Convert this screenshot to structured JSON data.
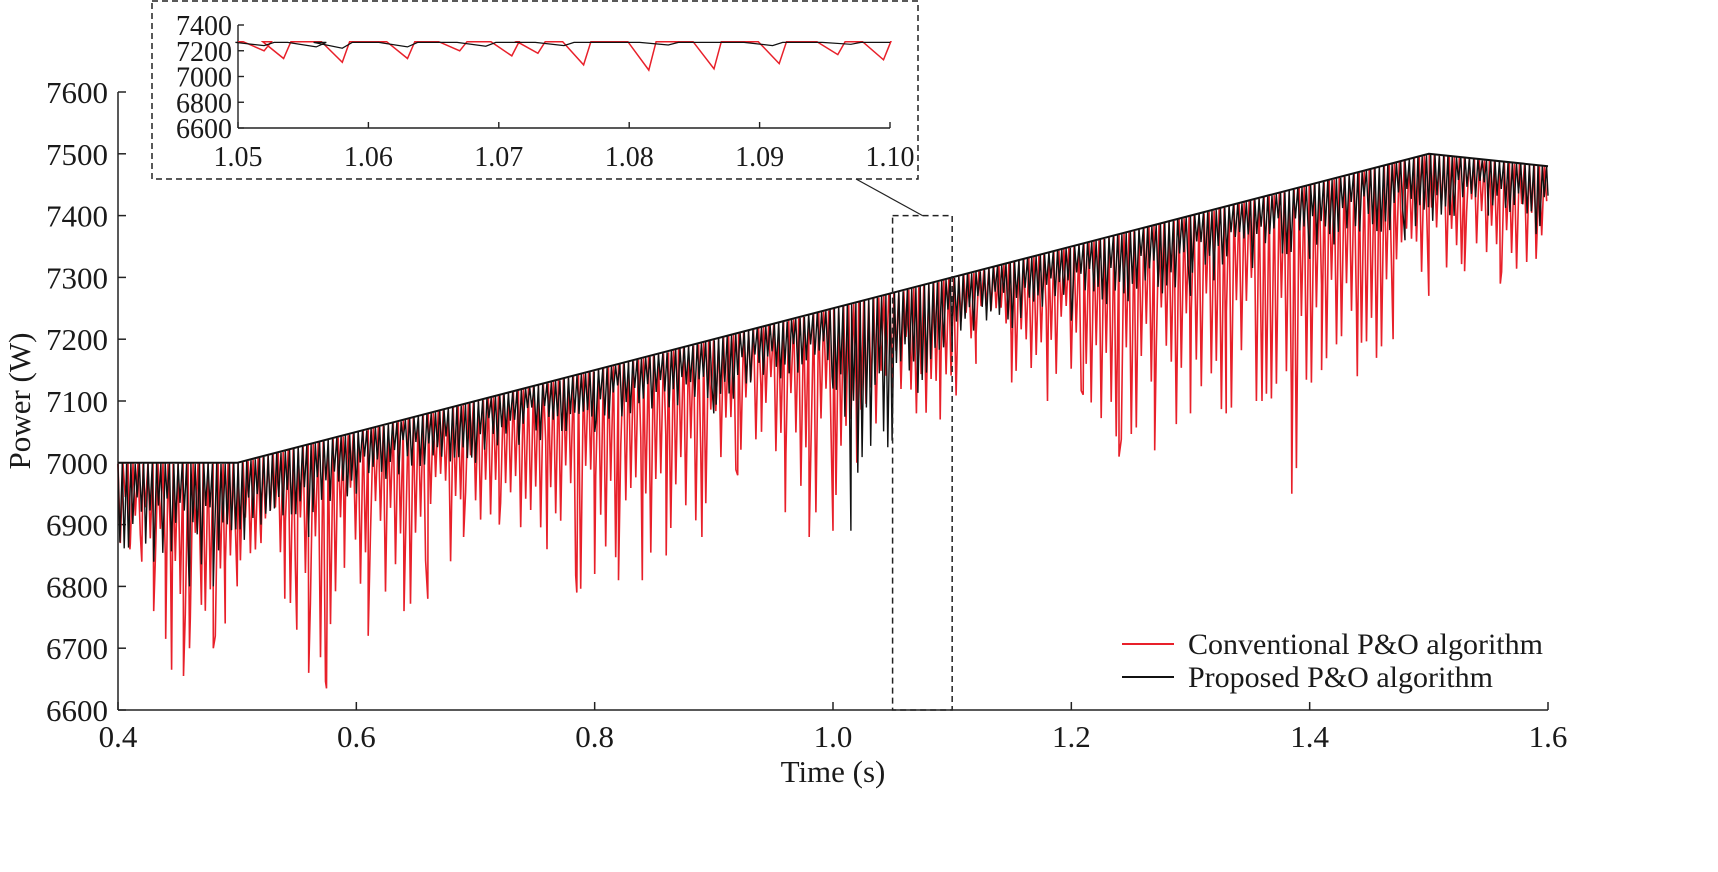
{
  "chart_data": {
    "type": "line",
    "title": "",
    "xlabel": "Time (s)",
    "ylabel": "Power (W)",
    "xlim": [
      0.4,
      1.6
    ],
    "ylim": [
      6600,
      7600
    ],
    "xticks": [
      "0.4",
      "0.6",
      "0.8",
      "1.0",
      "1.2",
      "1.4",
      "1.6"
    ],
    "yticks": [
      "6600",
      "6700",
      "6800",
      "6900",
      "7000",
      "7100",
      "7200",
      "7300",
      "7400",
      "7500",
      "7600"
    ],
    "grid": false,
    "legend_position": "bottom-right",
    "series": [
      {
        "name": "Conventional P&O algorithm",
        "color": "#e8202a",
        "envelope_top": [
          [
            0.4,
            7000
          ],
          [
            0.5,
            7000
          ],
          [
            1.5,
            7500
          ],
          [
            1.6,
            7480
          ]
        ],
        "dips": [
          [
            0.41,
            6860
          ],
          [
            0.42,
            6840
          ],
          [
            0.43,
            6760
          ],
          [
            0.44,
            6715
          ],
          [
            0.445,
            6665
          ],
          [
            0.455,
            6655
          ],
          [
            0.46,
            6700
          ],
          [
            0.47,
            6770
          ],
          [
            0.48,
            6700
          ],
          [
            0.49,
            6740
          ],
          [
            0.5,
            6800
          ],
          [
            0.52,
            6870
          ],
          [
            0.54,
            6780
          ],
          [
            0.55,
            6730
          ],
          [
            0.56,
            6660
          ],
          [
            0.575,
            6635
          ],
          [
            0.59,
            6830
          ],
          [
            0.61,
            6720
          ],
          [
            0.64,
            6760
          ],
          [
            0.66,
            6780
          ],
          [
            0.69,
            6880
          ],
          [
            0.72,
            6900
          ],
          [
            0.76,
            6860
          ],
          [
            0.785,
            6790
          ],
          [
            0.8,
            6820
          ],
          [
            0.82,
            6810
          ],
          [
            0.84,
            6810
          ],
          [
            0.86,
            6850
          ],
          [
            0.89,
            6880
          ],
          [
            0.92,
            6980
          ],
          [
            0.94,
            7050
          ],
          [
            0.96,
            6920
          ],
          [
            0.98,
            6880
          ],
          [
            1.0,
            6890
          ],
          [
            1.02,
            7000
          ],
          [
            1.05,
            7120
          ],
          [
            1.07,
            7080
          ],
          [
            1.09,
            7070
          ],
          [
            1.12,
            7160
          ],
          [
            1.15,
            7130
          ],
          [
            1.18,
            7100
          ],
          [
            1.21,
            7110
          ],
          [
            1.24,
            7010
          ],
          [
            1.27,
            7020
          ],
          [
            1.3,
            7080
          ],
          [
            1.33,
            7080
          ],
          [
            1.36,
            7100
          ],
          [
            1.385,
            6950
          ],
          [
            1.41,
            7150
          ],
          [
            1.44,
            7140
          ],
          [
            1.47,
            7200
          ],
          [
            1.5,
            7270
          ],
          [
            1.53,
            7310
          ],
          [
            1.56,
            7290
          ],
          [
            1.59,
            7330
          ]
        ]
      },
      {
        "name": "Proposed P&O algorithm",
        "color": "#111111",
        "envelope_top": [
          [
            0.4,
            7000
          ],
          [
            0.5,
            7000
          ],
          [
            1.5,
            7500
          ],
          [
            1.6,
            7480
          ]
        ],
        "dips": [
          [
            0.43,
            6840
          ],
          [
            0.46,
            6800
          ],
          [
            0.48,
            6800
          ],
          [
            0.52,
            6900
          ],
          [
            0.56,
            6880
          ],
          [
            0.6,
            6950
          ],
          [
            0.7,
            7000
          ],
          [
            0.8,
            7050
          ],
          [
            0.9,
            7080
          ],
          [
            1.0,
            7120
          ],
          [
            1.015,
            6890
          ],
          [
            1.1,
            7180
          ],
          [
            1.2,
            7230
          ],
          [
            1.3,
            7270
          ],
          [
            1.4,
            7330
          ],
          [
            1.48,
            7360
          ],
          [
            1.55,
            7400
          ],
          [
            1.59,
            7370
          ]
        ]
      }
    ],
    "inset": {
      "xlim": [
        1.05,
        1.1
      ],
      "ylim": [
        6600,
        7400
      ],
      "xticks": [
        "1.05",
        "1.06",
        "1.07",
        "1.08",
        "1.09",
        "1.10"
      ],
      "yticks": [
        "6600",
        "6800",
        "7000",
        "7200",
        "7400"
      ],
      "conventional_dips": [
        [
          1.052,
          7200
        ],
        [
          1.0535,
          7140
        ],
        [
          1.058,
          7110
        ],
        [
          1.063,
          7140
        ],
        [
          1.067,
          7200
        ],
        [
          1.071,
          7160
        ],
        [
          1.073,
          7180
        ],
        [
          1.0765,
          7090
        ],
        [
          1.0815,
          7050
        ],
        [
          1.0865,
          7060
        ],
        [
          1.0915,
          7100
        ],
        [
          1.096,
          7170
        ],
        [
          1.0995,
          7130
        ]
      ],
      "proposed_dips": [
        [
          1.052,
          7240
        ],
        [
          1.056,
          7230
        ],
        [
          1.058,
          7220
        ],
        [
          1.063,
          7230
        ],
        [
          1.069,
          7235
        ],
        [
          1.075,
          7240
        ],
        [
          1.083,
          7245
        ],
        [
          1.091,
          7240
        ],
        [
          1.097,
          7250
        ]
      ]
    }
  }
}
